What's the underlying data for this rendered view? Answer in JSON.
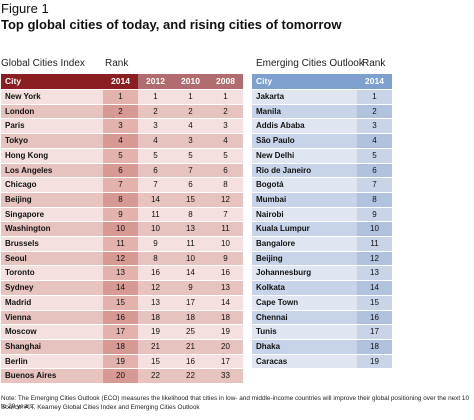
{
  "figure_label": "Figure 1",
  "title": "Top global cities of today, and rising cities of tomorrow",
  "global_table": {
    "title": "Global Cities Index",
    "rank_label": "Rank",
    "header": {
      "city": "City",
      "years": [
        "2014",
        "2012",
        "2010",
        "2008"
      ]
    },
    "rows": [
      {
        "city": "New York",
        "ranks": [
          "1",
          "1",
          "1",
          "1"
        ]
      },
      {
        "city": "London",
        "ranks": [
          "2",
          "2",
          "2",
          "2"
        ]
      },
      {
        "city": "Paris",
        "ranks": [
          "3",
          "3",
          "4",
          "3"
        ]
      },
      {
        "city": "Tokyo",
        "ranks": [
          "4",
          "4",
          "3",
          "4"
        ]
      },
      {
        "city": "Hong Kong",
        "ranks": [
          "5",
          "5",
          "5",
          "5"
        ]
      },
      {
        "city": "Los Angeles",
        "ranks": [
          "6",
          "6",
          "7",
          "6"
        ]
      },
      {
        "city": "Chicago",
        "ranks": [
          "7",
          "7",
          "6",
          "8"
        ]
      },
      {
        "city": "Beijing",
        "ranks": [
          "8",
          "14",
          "15",
          "12"
        ]
      },
      {
        "city": "Singapore",
        "ranks": [
          "9",
          "11",
          "8",
          "7"
        ]
      },
      {
        "city": "Washington",
        "ranks": [
          "10",
          "10",
          "13",
          "11"
        ]
      },
      {
        "city": "Brussels",
        "ranks": [
          "11",
          "9",
          "11",
          "10"
        ]
      },
      {
        "city": "Seoul",
        "ranks": [
          "12",
          "8",
          "10",
          "9"
        ]
      },
      {
        "city": "Toronto",
        "ranks": [
          "13",
          "16",
          "14",
          "16"
        ]
      },
      {
        "city": "Sydney",
        "ranks": [
          "14",
          "12",
          "9",
          "13"
        ]
      },
      {
        "city": "Madrid",
        "ranks": [
          "15",
          "13",
          "17",
          "14"
        ]
      },
      {
        "city": "Vienna",
        "ranks": [
          "16",
          "18",
          "18",
          "18"
        ]
      },
      {
        "city": "Moscow",
        "ranks": [
          "17",
          "19",
          "25",
          "19"
        ]
      },
      {
        "city": "Shanghai",
        "ranks": [
          "18",
          "21",
          "21",
          "20"
        ]
      },
      {
        "city": "Berlin",
        "ranks": [
          "19",
          "15",
          "16",
          "17"
        ]
      },
      {
        "city": "Buenos Aires",
        "ranks": [
          "20",
          "22",
          "22",
          "33"
        ]
      }
    ]
  },
  "emerging_table": {
    "title": "Emerging Cities Outlook",
    "rank_label": "Rank",
    "header": {
      "city": "City",
      "year": "2014"
    },
    "rows": [
      {
        "city": "Jakarta",
        "rank": "1"
      },
      {
        "city": "Manila",
        "rank": "2"
      },
      {
        "city": "Addis Ababa",
        "rank": "3"
      },
      {
        "city": "São Paulo",
        "rank": "4"
      },
      {
        "city": "New Delhi",
        "rank": "5"
      },
      {
        "city": "Rio de Janeiro",
        "rank": "6"
      },
      {
        "city": "Bogotá",
        "rank": "7"
      },
      {
        "city": "Mumbai",
        "rank": "8"
      },
      {
        "city": "Nairobi",
        "rank": "9"
      },
      {
        "city": "Kuala Lumpur",
        "rank": "10"
      },
      {
        "city": "Bangalore",
        "rank": "11"
      },
      {
        "city": "Beijing",
        "rank": "12"
      },
      {
        "city": "Johannesburg",
        "rank": "13"
      },
      {
        "city": "Kolkata",
        "rank": "14"
      },
      {
        "city": "Cape Town",
        "rank": "15"
      },
      {
        "city": "Chennai",
        "rank": "16"
      },
      {
        "city": "Tunis",
        "rank": "17"
      },
      {
        "city": "Dhaka",
        "rank": "18"
      },
      {
        "city": "Caracas",
        "rank": "19"
      }
    ]
  },
  "note": "Note: The Emerging Cities Outlook (ECO) measures the likelihood that cities in low- and middle-income countries will improve their global positioning over the next 10 to 20 years.",
  "source": "Source: A.T. Kearney Global Cities Index and Emerging Cities Outlook"
}
